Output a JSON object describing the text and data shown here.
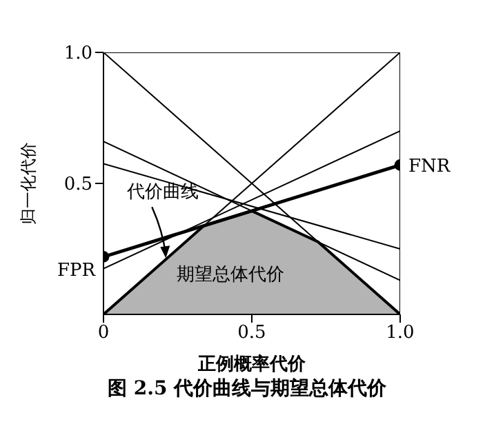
{
  "chart_data": {
    "type": "line",
    "xlabel": "正例概率代价",
    "ylabel": "归一化代价",
    "xlim": [
      0,
      1
    ],
    "ylim": [
      0,
      1
    ],
    "xticks": [
      0,
      0.5,
      {
        "value": 1,
        "label": "1.0"
      }
    ],
    "yticks": [
      0.5,
      {
        "value": 1,
        "label": "1.0"
      }
    ],
    "series": [
      {
        "type": "area",
        "color": "#b4b4b4",
        "x": [
          0,
          0.338,
          0.5,
          0.723,
          1
        ],
        "values": [
          0,
          0.338,
          0.395,
          0.277,
          0
        ]
      },
      {
        "color": "#000000",
        "x": [
          0,
          1
        ],
        "values": [
          1,
          1
        ]
      },
      {
        "color": "#000000",
        "x": [
          1,
          1
        ],
        "values": [
          0,
          1
        ]
      },
      {
        "color": "#000000",
        "x": [
          0,
          1
        ],
        "values": [
          0,
          1
        ]
      },
      {
        "color": "#000000",
        "x": [
          0,
          1
        ],
        "values": [
          1,
          0
        ]
      },
      {
        "color": "#000000",
        "x": [
          0,
          1
        ],
        "values": [
          0.175,
          0.7
        ]
      },
      {
        "color": "#000000",
        "x": [
          0,
          1
        ],
        "values": [
          0.66,
          0.13
        ]
      },
      {
        "color": "#000000",
        "x": [
          0,
          1
        ],
        "values": [
          0.575,
          0.25
        ]
      },
      {
        "color": "#000000",
        "marker": "circle",
        "x": [
          0,
          1
        ],
        "values": [
          0.22,
          0.57
        ]
      }
    ],
    "annotations": [
      {
        "text": "FPR",
        "x": 0,
        "y": 0.22
      },
      {
        "text": "FNR",
        "x": 1,
        "y": 0.57
      },
      {
        "text": "代价曲线",
        "x": 0.21,
        "y": 0.21
      },
      "期望总体代价",
      "图 2.5 代价曲线与期望总体代价"
    ]
  }
}
